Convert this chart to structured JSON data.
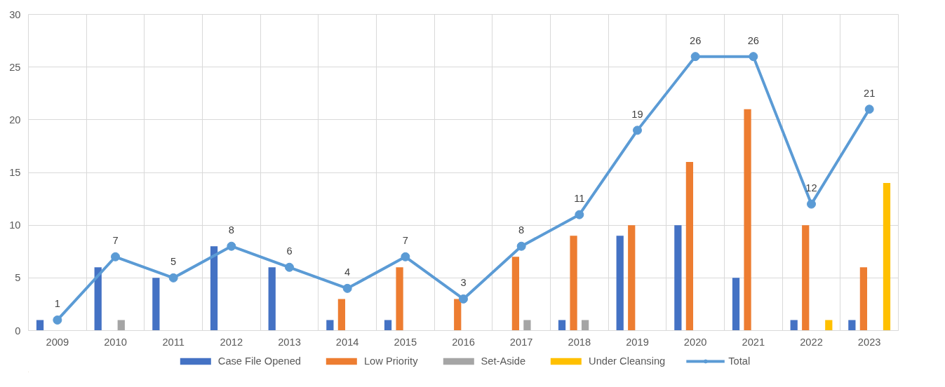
{
  "chart_data": {
    "type": "bar",
    "categories": [
      "2009",
      "2010",
      "2011",
      "2012",
      "2013",
      "2014",
      "2015",
      "2016",
      "2017",
      "2018",
      "2019",
      "2020",
      "2021",
      "2022",
      "2023"
    ],
    "series": [
      {
        "name": "Case File Opened",
        "color": "#4472c4",
        "values": [
          1,
          6,
          5,
          8,
          6,
          1,
          1,
          0,
          0,
          1,
          9,
          10,
          5,
          1,
          1
        ]
      },
      {
        "name": "Low Priority",
        "color": "#ed7d31",
        "values": [
          0,
          0,
          0,
          0,
          0,
          3,
          6,
          3,
          7,
          9,
          10,
          16,
          21,
          10,
          6
        ]
      },
      {
        "name": "Set-Aside",
        "color": "#a5a5a5",
        "values": [
          0,
          1,
          0,
          0,
          0,
          0,
          0,
          0,
          1,
          1,
          0,
          0,
          0,
          0,
          0
        ]
      },
      {
        "name": "Under Cleansing",
        "color": "#ffc000",
        "values": [
          0,
          0,
          0,
          0,
          0,
          0,
          0,
          0,
          0,
          0,
          0,
          0,
          0,
          1,
          14
        ]
      },
      {
        "name": "Total",
        "type": "line",
        "color": "#5b9bd5",
        "marker": "circle",
        "values": [
          1,
          7,
          5,
          8,
          6,
          4,
          7,
          3,
          8,
          11,
          19,
          26,
          26,
          12,
          21
        ],
        "value_labels": [
          "1",
          "7",
          "5",
          "8",
          "6",
          "4",
          "7",
          "3",
          "8",
          "11",
          "19",
          "26",
          "26",
          "12",
          "21"
        ]
      }
    ],
    "ylim": [
      0,
      30
    ],
    "yticks": [
      0,
      5,
      10,
      15,
      20,
      25,
      30
    ],
    "grid": true,
    "legend": "bottom"
  }
}
